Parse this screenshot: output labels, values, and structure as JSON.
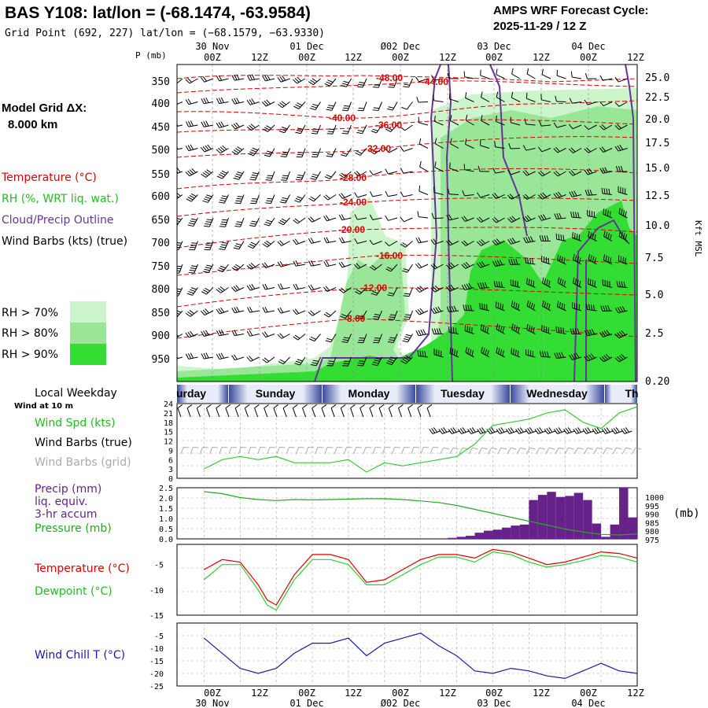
{
  "header": {
    "station_title": "BAS Y108:  lat/lon = (-68.1474, -63.9584)",
    "grid_point": "Grid Point (692, 227) lat/lon = (−68.1579, −63.9330)",
    "forecast_cycle_label": "AMPS WRF Forecast Cycle:",
    "forecast_cycle_value": "2025-11-29 / 12  Z"
  },
  "time_axis": {
    "hour_labels": [
      "00Z",
      "12Z",
      "00Z",
      "12Z",
      "00Z",
      "12Z",
      "00Z",
      "12Z",
      "00Z",
      "12Z"
    ],
    "day_labels": [
      "30 Nov",
      "01 Dec",
      "Ø02 Dec",
      "03 Dec",
      "04 Dec"
    ],
    "weekdays": [
      "urday",
      "Sunday",
      "Monday",
      "Tuesday",
      "Wednesday",
      "Th"
    ],
    "weekday_heading": "Local Weekday"
  },
  "left_legend": {
    "model_grid_label": "Model Grid ΔX:",
    "model_grid_value": "8.000 km",
    "temperature": "Temperature (°C)",
    "rh": "RH (%, WRT liq. wat.)",
    "cloud": "Cloud/Precip Outline",
    "wind_barbs": "Wind Barbs (kts) (true)",
    "rh_70": "RH > 70%",
    "rh_80": "RH > 80%",
    "rh_90": "RH > 90%",
    "wind_10m": "Wind at 10 m",
    "wind_spd": "Wind Spd (kts)",
    "barbs_true": "Wind Barbs (true)",
    "barbs_grid": "Wind Barbs (grid)",
    "precip_1": "Precip (mm)",
    "precip_2": "liq. equiv.",
    "precip_3": "3-hr accum",
    "pressure": "Pressure (mb)",
    "temperature2": "Temperature (°C)",
    "dewpoint": "Dewpoint (°C)",
    "windchill": "Wind Chill T (°C)"
  },
  "colors": {
    "temperature": "#dd0000",
    "rh_label": "#22bb22",
    "cloud": "#663399",
    "rh70": "#ccf5cc",
    "rh80": "#99e699",
    "rh90": "#33dd33",
    "wind_speed": "#33cc33",
    "pressure": "#22aa22",
    "precip": "#662288",
    "dewpoint": "#33cc33",
    "windchill": "#1a1aaa",
    "barb_grid": "#aaaaaa",
    "weekday_band": "#4455aa"
  },
  "chart_data": [
    {
      "type": "heatmap",
      "name": "vertical-cross-section",
      "y_axis_label": "P (mb)",
      "pressure_ticks": [
        "350",
        "400",
        "450",
        "500",
        "550",
        "600",
        "650",
        "700",
        "750",
        "800",
        "850",
        "900",
        "950"
      ],
      "right_axis_label": "Kft MSL",
      "height_ticks": [
        "25.0",
        "22.5",
        "20.0",
        "17.5",
        "15.0",
        "12.5",
        "10.0",
        "7.5",
        "5.0",
        "2.5",
        "0.20"
      ],
      "temperature_contours": [
        "-48.00",
        "-44.00",
        "-40.00",
        "-36.00",
        "-32.00",
        "-28.00",
        "-24.00",
        "-20.00",
        "-16.00",
        "-12.00",
        "-8.00"
      ]
    },
    {
      "type": "line",
      "name": "wind-speed-10m",
      "ylim": [
        0,
        24
      ],
      "y_ticks": [
        "24",
        "21",
        "18",
        "15",
        "12",
        "9",
        "6",
        "3",
        "0"
      ],
      "x_hours": [
        0,
        6,
        12,
        18,
        24,
        30,
        36,
        42,
        48,
        54,
        60,
        66,
        72,
        78,
        84,
        90,
        96,
        102,
        108,
        114,
        120,
        126,
        132,
        138,
        144
      ],
      "values": [
        3,
        6,
        7,
        6,
        7,
        5,
        5,
        5,
        6,
        2,
        5,
        4,
        5,
        6,
        7,
        11,
        17,
        18,
        19,
        21,
        22,
        18,
        16,
        21,
        23
      ]
    },
    {
      "type": "bar",
      "name": "precip-3hr",
      "y_ticks": [
        "2.5",
        "2.0",
        "1.5",
        "1.0",
        "0.5",
        "0.0"
      ],
      "ylim": [
        0,
        2.5
      ],
      "x_hours": [
        84,
        87,
        90,
        93,
        96,
        99,
        102,
        105,
        108,
        111,
        114,
        117,
        120,
        123,
        126,
        129,
        132,
        135,
        138,
        141,
        144
      ],
      "values": [
        0.05,
        0.1,
        0.15,
        0.3,
        0.4,
        0.45,
        0.55,
        0.65,
        0.7,
        1.9,
        2.15,
        2.3,
        2.05,
        2.1,
        2.25,
        1.9,
        0.75,
        0.1,
        0.7,
        2.5,
        1.05
      ],
      "pressure_ticks": [
        "1000",
        "995",
        "990",
        "985",
        "980",
        "975"
      ],
      "pressure_unit": "(mb)",
      "pressure_ylim": [
        975,
        1001
      ],
      "pressure_x_hours": [
        0,
        6,
        12,
        18,
        24,
        30,
        36,
        42,
        48,
        54,
        60,
        66,
        72,
        78,
        84,
        90,
        96,
        102,
        108,
        114,
        120,
        126,
        132,
        138,
        144
      ],
      "pressure_values": [
        999,
        998,
        996,
        995,
        994.5,
        995,
        994.8,
        995,
        995.2,
        995.5,
        995.4,
        995,
        994.3,
        993.5,
        992,
        990,
        988,
        986,
        984,
        982,
        980,
        978.5,
        977.3,
        977,
        977.5
      ]
    },
    {
      "type": "line",
      "name": "temperature-dewpoint",
      "y_ticks": [
        "-5",
        "-10",
        "-15"
      ],
      "ylim": [
        -15,
        -1
      ],
      "x_hours": [
        0,
        6,
        12,
        18,
        21,
        24,
        30,
        36,
        42,
        48,
        54,
        60,
        66,
        72,
        78,
        84,
        90,
        96,
        102,
        108,
        114,
        120,
        126,
        132,
        138,
        144
      ],
      "series": [
        {
          "name": "Temperature",
          "values": [
            -6,
            -4,
            -4.5,
            -9,
            -12,
            -13,
            -7,
            -3,
            -3,
            -4,
            -8.5,
            -8,
            -6,
            -4,
            -3,
            -3,
            -3.7,
            -2,
            -2.5,
            -3.7,
            -5,
            -4.5,
            -3.5,
            -2.5,
            -2.8,
            -3.7
          ]
        },
        {
          "name": "Dewpoint",
          "values": [
            -8,
            -5,
            -5,
            -10,
            -13,
            -14,
            -8,
            -4,
            -4,
            -5,
            -9,
            -9,
            -7,
            -5,
            -3.5,
            -3.5,
            -4.5,
            -2.5,
            -3,
            -4.5,
            -5.5,
            -5,
            -4.2,
            -3.2,
            -3.5,
            -4.5
          ]
        }
      ]
    },
    {
      "type": "line",
      "name": "wind-chill",
      "y_ticks": [
        "-5",
        "-10",
        "-15",
        "-20",
        "-25"
      ],
      "ylim": [
        -25,
        0
      ],
      "x_hours": [
        0,
        6,
        12,
        18,
        24,
        30,
        36,
        42,
        48,
        54,
        60,
        66,
        72,
        78,
        84,
        90,
        96,
        102,
        108,
        114,
        120,
        126,
        132,
        138,
        144
      ],
      "values": [
        -6,
        -12,
        -18,
        -20,
        -18,
        -12,
        -8,
        -8,
        -6,
        -13,
        -8,
        -6,
        -4,
        -9,
        -13,
        -19,
        -20,
        -18,
        -19,
        -21,
        -22,
        -19,
        -16,
        -19,
        -20
      ]
    }
  ]
}
